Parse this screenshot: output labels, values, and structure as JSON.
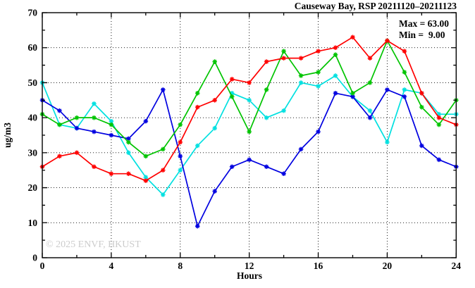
{
  "header": {
    "title": "Causeway Bay, RSP 20211120–20211123"
  },
  "stats": {
    "max_label": "Max = 63.00",
    "min_label": "Min =  9.00"
  },
  "watermark": "© 2025 ENVF, HKUST",
  "axes": {
    "xlabel": "Hours",
    "ylabel": "ug/m3"
  },
  "chart_data": {
    "type": "line",
    "title": "Causeway Bay, RSP 20211120–20211123",
    "xlabel": "Hours",
    "ylabel": "ug/m3",
    "xlim": [
      0,
      24
    ],
    "ylim": [
      0,
      70
    ],
    "xticks": [
      0,
      4,
      8,
      12,
      16,
      20,
      24
    ],
    "xminorticks": [
      2,
      6,
      10,
      14,
      18,
      22
    ],
    "yticks": [
      0,
      10,
      20,
      30,
      40,
      50,
      60,
      70
    ],
    "yminorticks": [
      5,
      15,
      25,
      35,
      45,
      55,
      65
    ],
    "xgrid": [
      4,
      8,
      12,
      16,
      20
    ],
    "ygrid": [
      10,
      20,
      30,
      40,
      50,
      60
    ],
    "grid": true,
    "legend_position": "none",
    "annotations": {
      "max": 63.0,
      "min": 9.0
    },
    "x": [
      0,
      1,
      2,
      3,
      4,
      5,
      6,
      7,
      8,
      9,
      10,
      11,
      12,
      13,
      14,
      15,
      16,
      17,
      18,
      19,
      20,
      21,
      22,
      23,
      24
    ],
    "series": [
      {
        "name": "day-1-red",
        "color": "#ff0000",
        "values": [
          26,
          29,
          30,
          26,
          24,
          24,
          22,
          25,
          33,
          43,
          45,
          51,
          50,
          56,
          57,
          57,
          59,
          60,
          63,
          57,
          62,
          59,
          47,
          40,
          38
        ]
      },
      {
        "name": "day-2-green",
        "color": "#00c400",
        "values": [
          41,
          38,
          40,
          40,
          38,
          33,
          29,
          31,
          38,
          47,
          56,
          46,
          36,
          48,
          59,
          52,
          53,
          58,
          47,
          50,
          62,
          53,
          43,
          38,
          45
        ]
      },
      {
        "name": "day-3-blue",
        "color": "#0000e0",
        "values": [
          45,
          42,
          37,
          36,
          35,
          34,
          39,
          48,
          29,
          9,
          19,
          26,
          28,
          26,
          24,
          31,
          36,
          47,
          46,
          40,
          48,
          46,
          32,
          28,
          26
        ]
      },
      {
        "name": "day-4-cyan",
        "color": "#00e0e0",
        "values": [
          50,
          38,
          37,
          44,
          39,
          30,
          23,
          18,
          25,
          32,
          37,
          47,
          45,
          40,
          42,
          50,
          49,
          52,
          46,
          42,
          33,
          48,
          47,
          41,
          41
        ]
      }
    ]
  }
}
